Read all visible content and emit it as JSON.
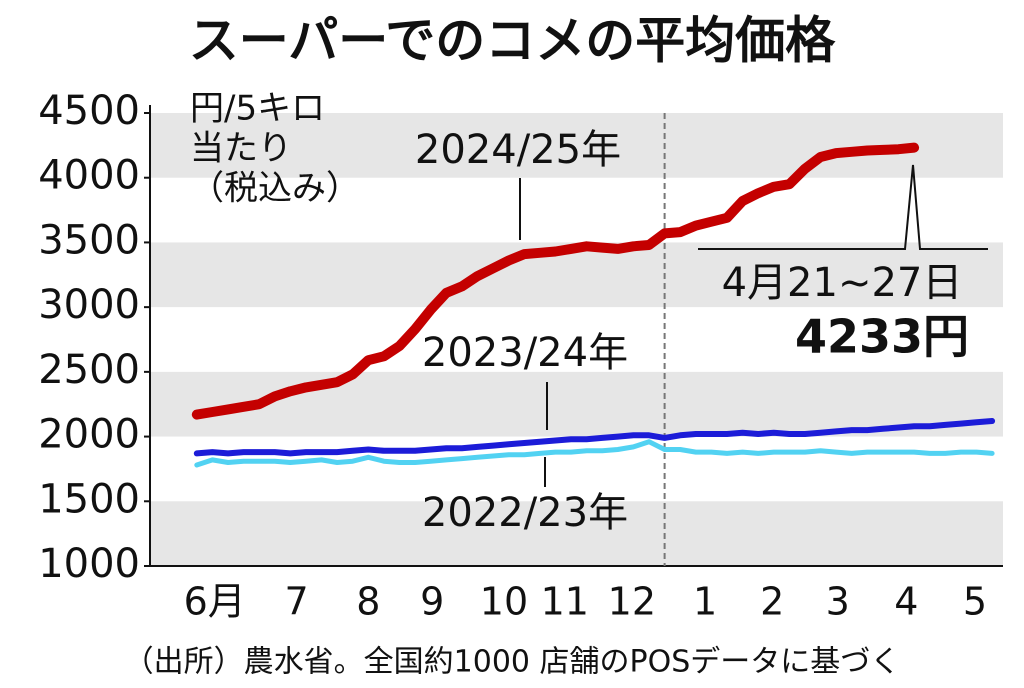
{
  "chart_data": {
    "type": "line",
    "title": "スーパーでのコメの平均価格",
    "y_label_lines": [
      "円/5キロ",
      "当たり",
      "（税込み）"
    ],
    "source": "（出所）農水省。全国約1000 店舗のPOSデータに基づく",
    "x": [
      0,
      1,
      2,
      3,
      4,
      5,
      6,
      7,
      8,
      9,
      10,
      11,
      12,
      13,
      14,
      15,
      16,
      17,
      18,
      19,
      20,
      21,
      22,
      23,
      24,
      25,
      26,
      27,
      28,
      29,
      30,
      31,
      32,
      33,
      34,
      35,
      36,
      37,
      38,
      39,
      40,
      41,
      42,
      43,
      44,
      45,
      46,
      47,
      48,
      49,
      50,
      51
    ],
    "xlim": [
      -3,
      51.7
    ],
    "xticks": [
      {
        "value": 1.15,
        "label": "6月"
      },
      {
        "value": 6.4,
        "label": "7"
      },
      {
        "value": 11,
        "label": "8"
      },
      {
        "value": 15.1,
        "label": "9"
      },
      {
        "value": 19.7,
        "label": "10"
      },
      {
        "value": 23.6,
        "label": "11"
      },
      {
        "value": 27.9,
        "label": "12"
      },
      {
        "value": 32.6,
        "label": "1"
      },
      {
        "value": 36.9,
        "label": "2"
      },
      {
        "value": 41.1,
        "label": "3"
      },
      {
        "value": 45.5,
        "label": "4"
      },
      {
        "value": 49.9,
        "label": "5"
      }
    ],
    "year_divider": 30,
    "ylim": [
      1000,
      4500
    ],
    "yticks": [
      1000,
      1500,
      2000,
      2500,
      3000,
      3500,
      4000,
      4500
    ],
    "banded_grid": true,
    "series": [
      {
        "name": "2024/25年",
        "color": "#c40000",
        "width": 10,
        "values": [
          2170,
          2190,
          2210,
          2230,
          2250,
          2310,
          2350,
          2380,
          2400,
          2420,
          2480,
          2590,
          2620,
          2700,
          2830,
          2980,
          3110,
          3160,
          3240,
          3300,
          3360,
          3410,
          3420,
          3430,
          3450,
          3470,
          3460,
          3450,
          3470,
          3480,
          3570,
          3580,
          3630,
          3660,
          3690,
          3820,
          3880,
          3930,
          3950,
          4070,
          4160,
          4190,
          4200,
          4210,
          4215,
          4220,
          4233,
          null,
          null,
          null,
          null,
          null
        ]
      },
      {
        "name": "2023/24年",
        "color": "#1c1cd8",
        "width": 6,
        "values": [
          1870,
          1880,
          1870,
          1880,
          1880,
          1880,
          1870,
          1880,
          1880,
          1880,
          1890,
          1900,
          1890,
          1890,
          1890,
          1900,
          1910,
          1910,
          1920,
          1930,
          1940,
          1950,
          1960,
          1970,
          1980,
          1980,
          1990,
          2000,
          2010,
          2010,
          1990,
          2010,
          2020,
          2020,
          2020,
          2030,
          2020,
          2030,
          2020,
          2020,
          2030,
          2040,
          2050,
          2050,
          2060,
          2070,
          2080,
          2080,
          2090,
          2100,
          2110,
          2120
        ]
      },
      {
        "name": "2022/23年",
        "color": "#52d2f2",
        "width": 5,
        "values": [
          1780,
          1820,
          1800,
          1810,
          1810,
          1810,
          1800,
          1810,
          1820,
          1800,
          1810,
          1840,
          1810,
          1800,
          1800,
          1810,
          1820,
          1830,
          1840,
          1850,
          1860,
          1860,
          1870,
          1880,
          1880,
          1890,
          1890,
          1900,
          1920,
          1960,
          1900,
          1900,
          1880,
          1880,
          1870,
          1880,
          1870,
          1880,
          1880,
          1880,
          1890,
          1880,
          1870,
          1880,
          1880,
          1880,
          1880,
          1870,
          1870,
          1880,
          1880,
          1870
        ]
      }
    ],
    "annotations": [
      "4月21~27日",
      "4233円"
    ]
  }
}
